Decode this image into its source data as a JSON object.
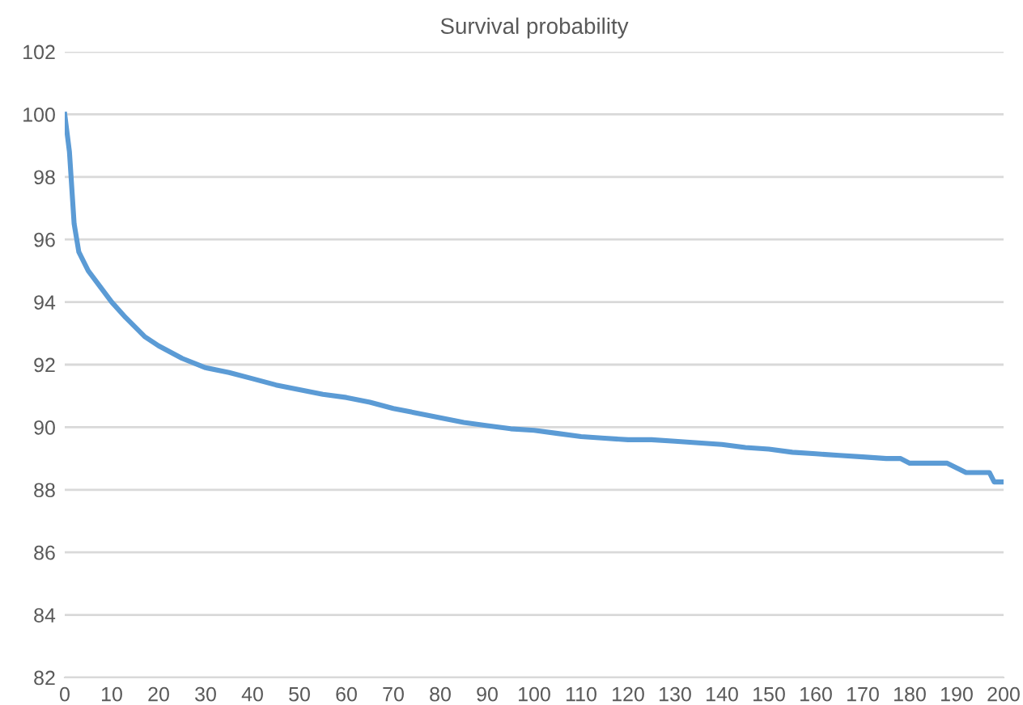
{
  "chart_data": {
    "type": "line",
    "title": "Survival probability",
    "x": [
      0,
      1,
      2,
      3,
      5,
      7,
      10,
      13,
      17,
      20,
      25,
      30,
      35,
      40,
      45,
      50,
      55,
      60,
      65,
      70,
      75,
      80,
      85,
      90,
      95,
      100,
      105,
      110,
      115,
      120,
      125,
      130,
      135,
      140,
      145,
      150,
      155,
      160,
      165,
      170,
      175,
      178,
      180,
      188,
      190,
      192,
      197,
      198,
      200
    ],
    "series": [
      {
        "color": "#5b9bd5",
        "values": [
          100,
          98.8,
          96.5,
          95.6,
          95.0,
          94.6,
          94.0,
          93.5,
          92.9,
          92.6,
          92.2,
          91.9,
          91.75,
          91.55,
          91.35,
          91.2,
          91.05,
          90.95,
          90.8,
          90.6,
          90.45,
          90.3,
          90.15,
          90.05,
          89.95,
          89.9,
          89.8,
          89.7,
          89.65,
          89.6,
          89.6,
          89.55,
          89.5,
          89.45,
          89.35,
          89.3,
          89.2,
          89.15,
          89.1,
          89.05,
          89.0,
          89.0,
          88.85,
          88.85,
          88.7,
          88.55,
          88.55,
          88.25,
          88.25
        ]
      }
    ],
    "xlim": [
      0,
      200
    ],
    "xticks": [
      0,
      10,
      20,
      30,
      40,
      50,
      60,
      70,
      80,
      90,
      100,
      110,
      120,
      130,
      140,
      150,
      160,
      170,
      180,
      190,
      200
    ],
    "ylim": [
      82,
      102
    ],
    "yticks": [
      82,
      84,
      86,
      88,
      90,
      92,
      94,
      96,
      98,
      100,
      102
    ],
    "grid": "y",
    "legend": false,
    "marker": "none",
    "line_style": "solid"
  }
}
